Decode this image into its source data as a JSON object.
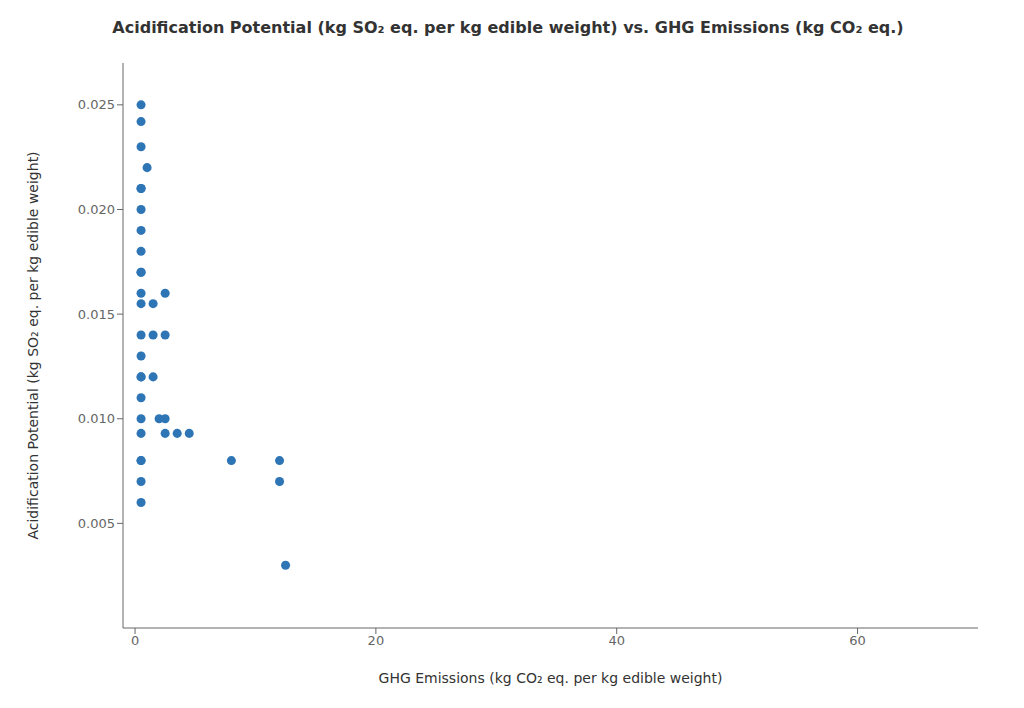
{
  "chart_data": {
    "type": "scatter",
    "title": "Acidification Potential (kg SO₂ eq. per kg edible weight) vs. GHG Emissions (kg CO₂ eq.)",
    "xlabel": "GHG Emissions (kg CO₂ eq. per kg edible weight)",
    "ylabel": "Acidification Potential (kg SO₂ eq. per kg edible weight)",
    "x": [
      0.5,
      0.5,
      0.5,
      1.0,
      0.5,
      0.5,
      0.5,
      0.5,
      0.5,
      0.5,
      0.5,
      0.5,
      2.5,
      0.5,
      1.5,
      0.5,
      1.5,
      0.5,
      0.5,
      0.5,
      2.5,
      0.5,
      1.5,
      2.0,
      2.5,
      0.5,
      0.5,
      2.5,
      3.5,
      0.5,
      4.5,
      8.0,
      0.5,
      0.5,
      0.5,
      12.0,
      12.0,
      12.5
    ],
    "values": [
      0.025,
      0.0242,
      0.023,
      0.022,
      0.021,
      0.021,
      0.02,
      0.019,
      0.018,
      0.017,
      0.017,
      0.016,
      0.016,
      0.0155,
      0.0155,
      0.014,
      0.014,
      0.013,
      0.012,
      0.012,
      0.014,
      0.011,
      0.012,
      0.01,
      0.01,
      0.01,
      0.0093,
      0.0093,
      0.0093,
      0.008,
      0.0093,
      0.008,
      0.008,
      0.007,
      0.006,
      0.008,
      0.007,
      0.003
    ],
    "color": "#2e75b6",
    "xlim": [
      -1,
      70
    ],
    "ylim": [
      0.0,
      0.027
    ],
    "xticks": [
      0,
      20,
      40,
      60
    ],
    "yticks": [
      0.005,
      {
        "value": 0.01,
        "label": "0.010"
      },
      0.015,
      {
        "value": 0.02,
        "label": "0.020"
      },
      0.025
    ],
    "grid": false
  }
}
